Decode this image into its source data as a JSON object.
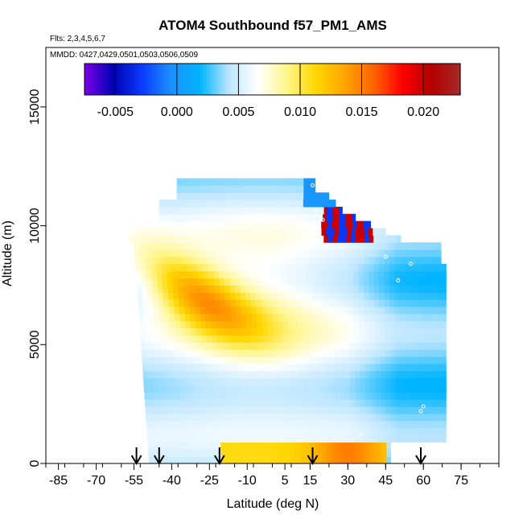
{
  "chart_data": {
    "type": "heatmap",
    "title": "ATOM4 Southbound f57_PM1_AMS",
    "flights_note": "Flts: 2,3,4,5,6,7",
    "dates_note": "MMDD: 0427,0429,0501,0503,0506,0509",
    "xlabel": "Latitude (deg N)",
    "ylabel": "Altitude (m)",
    "xlim": [
      -90,
      90
    ],
    "ylim": [
      0,
      17500
    ],
    "x_ticks": [
      -85,
      -70,
      -55,
      -40,
      -25,
      -10,
      5,
      15,
      30,
      45,
      60,
      75
    ],
    "x_tick_labels": [
      "-85",
      "-70",
      "-55",
      "-40",
      "-25",
      "-10",
      "5",
      "15",
      "30",
      "45",
      "60",
      "75"
    ],
    "y_ticks": [
      0,
      5000,
      10000,
      15000
    ],
    "y_tick_labels": [
      "0",
      "5000",
      "10000",
      "15000"
    ],
    "colorbar": {
      "min": -0.0075,
      "max": 0.023,
      "ticks": [
        -0.005,
        0.0,
        0.005,
        0.01,
        0.015,
        0.02
      ],
      "tick_labels": [
        "-0.005",
        "0.000",
        "0.005",
        "0.010",
        "0.015",
        "0.020"
      ],
      "colors": [
        "#7a00e6",
        "#0000b4",
        "#0a3cff",
        "#1e90ff",
        "#00b4ff",
        "#bde6ff",
        "#ffffff",
        "#fff58c",
        "#ffd700",
        "#ffa500",
        "#ff6400",
        "#ff0000",
        "#b40000",
        "#a52a2a"
      ]
    },
    "profile_latitudes": [
      -54,
      -45,
      -21,
      16,
      59
    ],
    "data_extent": {
      "lat_min": -57,
      "lat_max": 70,
      "alt_min": 0,
      "alt_max": 12000
    }
  }
}
